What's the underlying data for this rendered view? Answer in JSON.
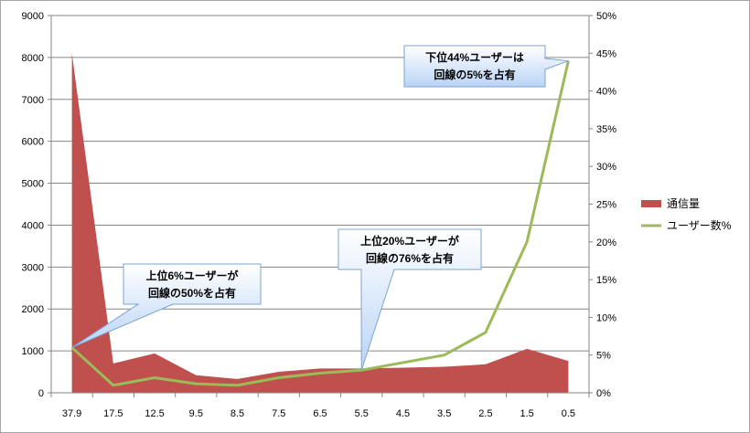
{
  "chart_data": {
    "type": "area+line",
    "categories": [
      "37.9",
      "17.5",
      "12.5",
      "9.5",
      "8.5",
      "7.5",
      "6.5",
      "5.5",
      "4.5",
      "3.5",
      "2.5",
      "1.5",
      "0.5"
    ],
    "series": [
      {
        "name": "通信量",
        "type": "area",
        "axis": "left",
        "color": "#c0504d",
        "values": [
          8100,
          700,
          940,
          420,
          330,
          500,
          580,
          580,
          600,
          620,
          680,
          1050,
          760
        ]
      },
      {
        "name": "ユーザー数%",
        "type": "line",
        "axis": "right",
        "color": "#9bbb59",
        "values": [
          6,
          1,
          2,
          1.2,
          1,
          2,
          2.6,
          3,
          4,
          5,
          8,
          20,
          44
        ]
      }
    ],
    "y_left": {
      "min": 0,
      "max": 9000,
      "step": 1000,
      "ticks": [
        "0",
        "1000",
        "2000",
        "3000",
        "4000",
        "5000",
        "6000",
        "7000",
        "8000",
        "9000"
      ]
    },
    "y_right": {
      "min": 0,
      "max": 50,
      "step": 5,
      "ticks": [
        "0%",
        "5%",
        "10%",
        "15%",
        "20%",
        "25%",
        "30%",
        "35%",
        "40%",
        "45%",
        "50%"
      ]
    },
    "grid": true,
    "legend": "right",
    "annotations": [
      {
        "lines": [
          "上位6%ユーザーが",
          "回線の50%を占有"
        ],
        "target_index": 0,
        "target_value_pct": 6
      },
      {
        "lines": [
          "上位20%ユーザーが",
          "回線の76%を占有"
        ],
        "target_index": 7,
        "target_value_pct": 3
      },
      {
        "lines": [
          "下位44%ユーザーは",
          "回線の5%を占有"
        ],
        "target_index": 12,
        "target_value_pct": 44
      }
    ]
  }
}
